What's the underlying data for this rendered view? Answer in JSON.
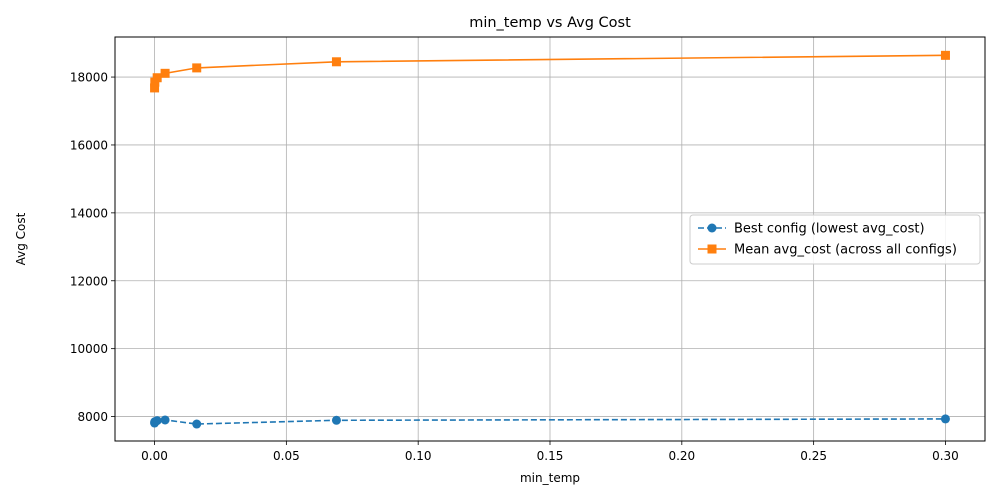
{
  "chart_data": {
    "type": "line",
    "title": "min_temp vs Avg Cost",
    "xlabel": "min_temp",
    "ylabel": "Avg Cost",
    "xlim": [
      -0.015,
      0.315
    ],
    "ylim": [
      7280,
      19180
    ],
    "x_ticks": [
      0.0,
      0.05,
      0.1,
      0.15,
      0.2,
      0.25,
      0.3
    ],
    "x_tick_labels": [
      "0.00",
      "0.05",
      "0.10",
      "0.15",
      "0.20",
      "0.25",
      "0.30"
    ],
    "y_ticks": [
      8000,
      10000,
      12000,
      14000,
      16000,
      18000
    ],
    "y_tick_labels": [
      "8000",
      "10000",
      "12000",
      "14000",
      "16000",
      "18000"
    ],
    "grid": true,
    "legend_position": "center-right",
    "series": [
      {
        "name": "Best config (lowest avg_cost)",
        "color": "#1f77b4",
        "marker": "circle",
        "line_style": "dashed",
        "x": [
          1e-05,
          0.0001,
          0.001,
          0.004,
          0.016,
          0.069,
          0.3
        ],
        "y": [
          7810,
          7850,
          7880,
          7900,
          7780,
          7890,
          7930
        ]
      },
      {
        "name": "Mean avg_cost (across all configs)",
        "color": "#ff7f0e",
        "marker": "square",
        "line_style": "solid",
        "x": [
          1e-05,
          0.0001,
          0.001,
          0.004,
          0.016,
          0.069,
          0.3
        ],
        "y": [
          17680,
          17850,
          17980,
          18110,
          18270,
          18450,
          18640
        ]
      }
    ]
  }
}
